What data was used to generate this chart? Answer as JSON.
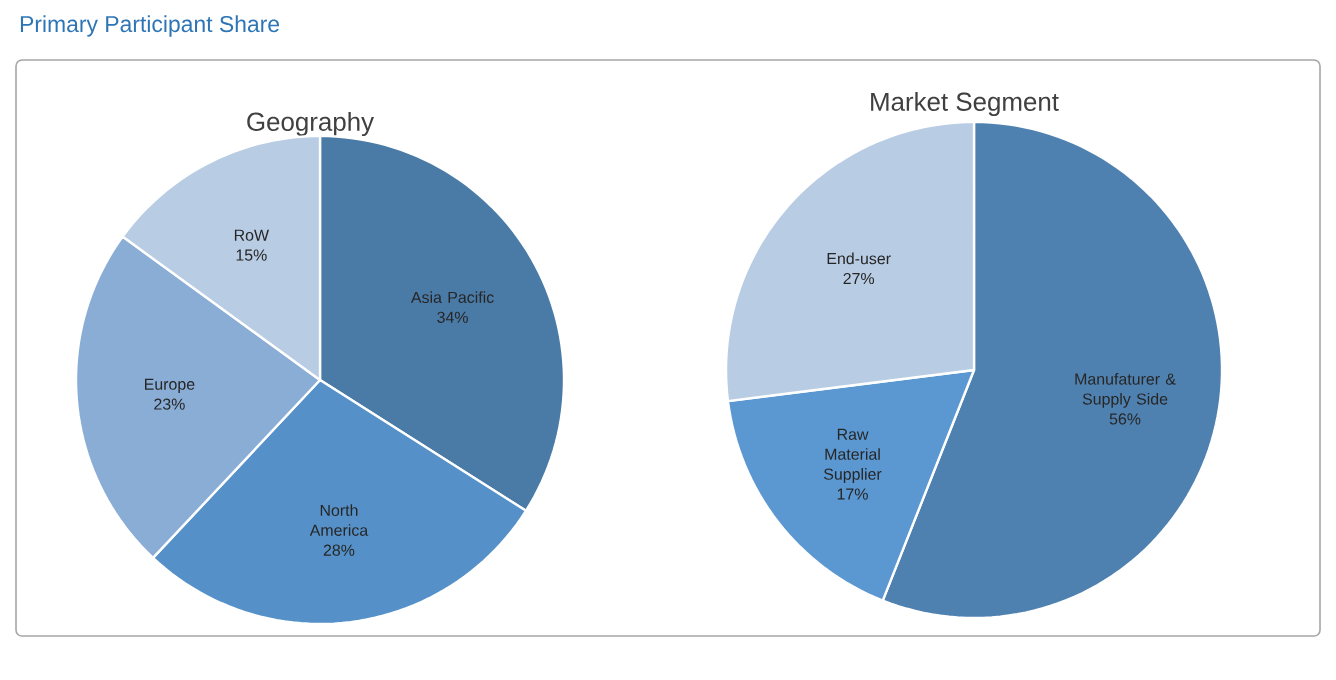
{
  "chart_data": [
    {
      "type": "pie",
      "title": "Primary Participant Share",
      "subtitle": "Geography",
      "categories": [
        "Asia Pacific",
        "North America",
        "Europe",
        "RoW"
      ],
      "values": [
        34,
        28,
        23,
        15
      ],
      "value_labels": [
        "34%",
        "28%",
        "23%",
        "15%"
      ],
      "colors": [
        "#4a7aa6",
        "#5591c8",
        "#8aadd6",
        "#b8cce4"
      ]
    },
    {
      "type": "pie",
      "title": "Market Segment",
      "categories": [
        "Manufaturer & Supply Side",
        "Raw Material Supplier",
        "End-user"
      ],
      "values": [
        56,
        17,
        27
      ],
      "value_labels": [
        "56%",
        "17%",
        "27%"
      ],
      "colors": [
        "#4f81b0",
        "#5b98d2",
        "#b8cce4"
      ]
    }
  ]
}
